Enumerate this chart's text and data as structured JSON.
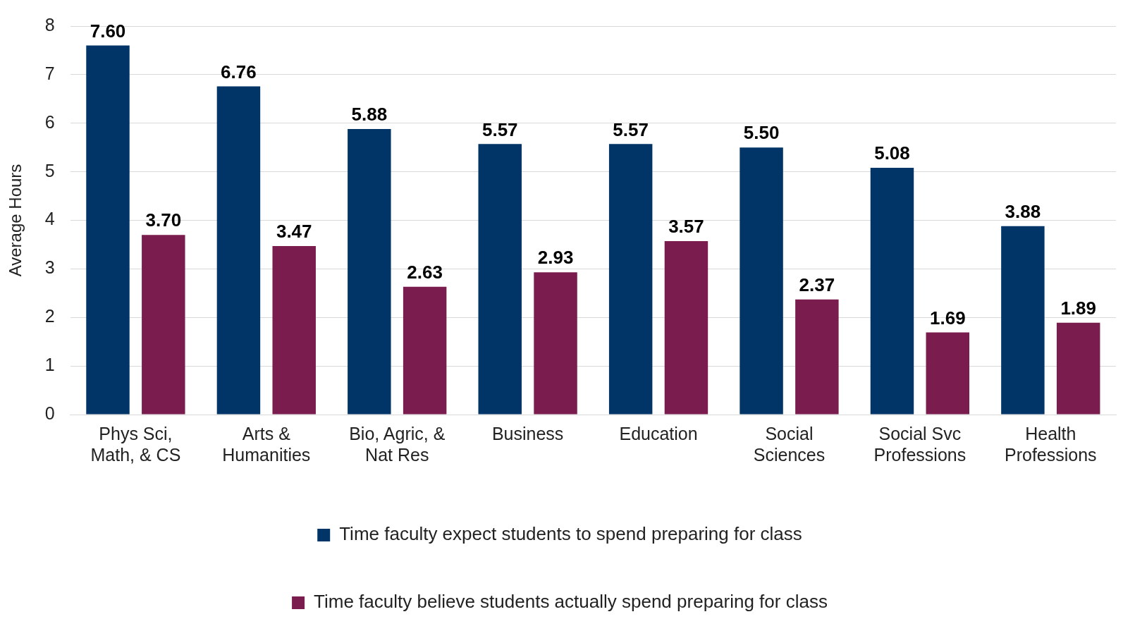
{
  "chart_data": {
    "type": "bar",
    "categories": [
      "Phys Sci, Math, & CS",
      "Arts & Humanities",
      "Bio, Agric, & Nat Res",
      "Business",
      "Education",
      "Social Sciences",
      "Social Svc Professions",
      "Health Professions"
    ],
    "series": [
      {
        "name": "Time faculty expect students to spend preparing for class",
        "color": "#013567",
        "values": [
          7.6,
          6.76,
          5.88,
          5.57,
          5.57,
          5.5,
          5.08,
          3.88
        ],
        "value_labels": [
          "7.60",
          "6.76",
          "5.88",
          "5.57",
          "5.57",
          "5.50",
          "5.08",
          "3.88"
        ]
      },
      {
        "name": "Time faculty believe students actually spend preparing for class",
        "color": "#7b1c4f",
        "values": [
          3.7,
          3.47,
          2.63,
          2.93,
          3.57,
          2.37,
          1.69,
          1.89
        ],
        "value_labels": [
          "3.70",
          "3.47",
          "2.63",
          "2.93",
          "3.57",
          "2.37",
          "1.69",
          "1.89"
        ]
      }
    ],
    "ylabel": "Average Hours",
    "ylim": [
      0,
      8
    ],
    "yticks": [
      0,
      1,
      2,
      3,
      4,
      5,
      6,
      7,
      8
    ],
    "grid": "y",
    "legend": "bottom"
  }
}
